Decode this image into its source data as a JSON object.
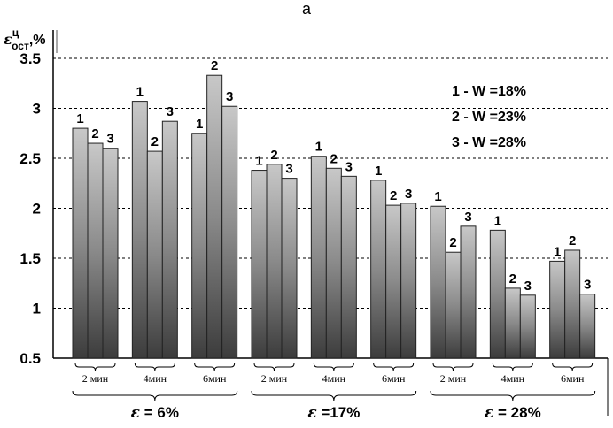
{
  "chart_data": {
    "type": "bar",
    "title": "а",
    "ylabel": {
      "symbol": "ε",
      "superscript": "ц",
      "subscript": "ост",
      "unit": ",%"
    },
    "ylim": [
      0.5,
      3.5
    ],
    "yticks": [
      "0.5",
      "1",
      "1.5",
      "2",
      "2.5",
      "3",
      "3.5"
    ],
    "grid": "horizontal dashed",
    "series": [
      {
        "name": "1",
        "legend": "1 - W =18%"
      },
      {
        "name": "2",
        "legend": "2 - W =23%"
      },
      {
        "name": "3",
        "legend": "3 - W =28%"
      }
    ],
    "legend_position": "top-right",
    "categories": [
      "2 мин",
      "4мин",
      "6мин",
      "2 мин",
      "4мин",
      "6мин",
      "2 мин",
      "4мин",
      "6мин"
    ],
    "values": [
      [
        2.8,
        2.65,
        2.6
      ],
      [
        3.07,
        2.57,
        2.87
      ],
      [
        2.75,
        3.33,
        3.02
      ],
      [
        2.38,
        2.44,
        2.3
      ],
      [
        2.52,
        2.4,
        2.32
      ],
      [
        2.28,
        2.03,
        2.05
      ],
      [
        2.02,
        1.56,
        1.82
      ],
      [
        1.78,
        1.2,
        1.13
      ],
      [
        1.47,
        1.58,
        1.14
      ]
    ],
    "groups": [
      {
        "symbol": "ε",
        "text": " = 6%"
      },
      {
        "symbol": "ε",
        "text": " =17%"
      },
      {
        "symbol": "ε",
        "text": " = 28%"
      }
    ]
  }
}
